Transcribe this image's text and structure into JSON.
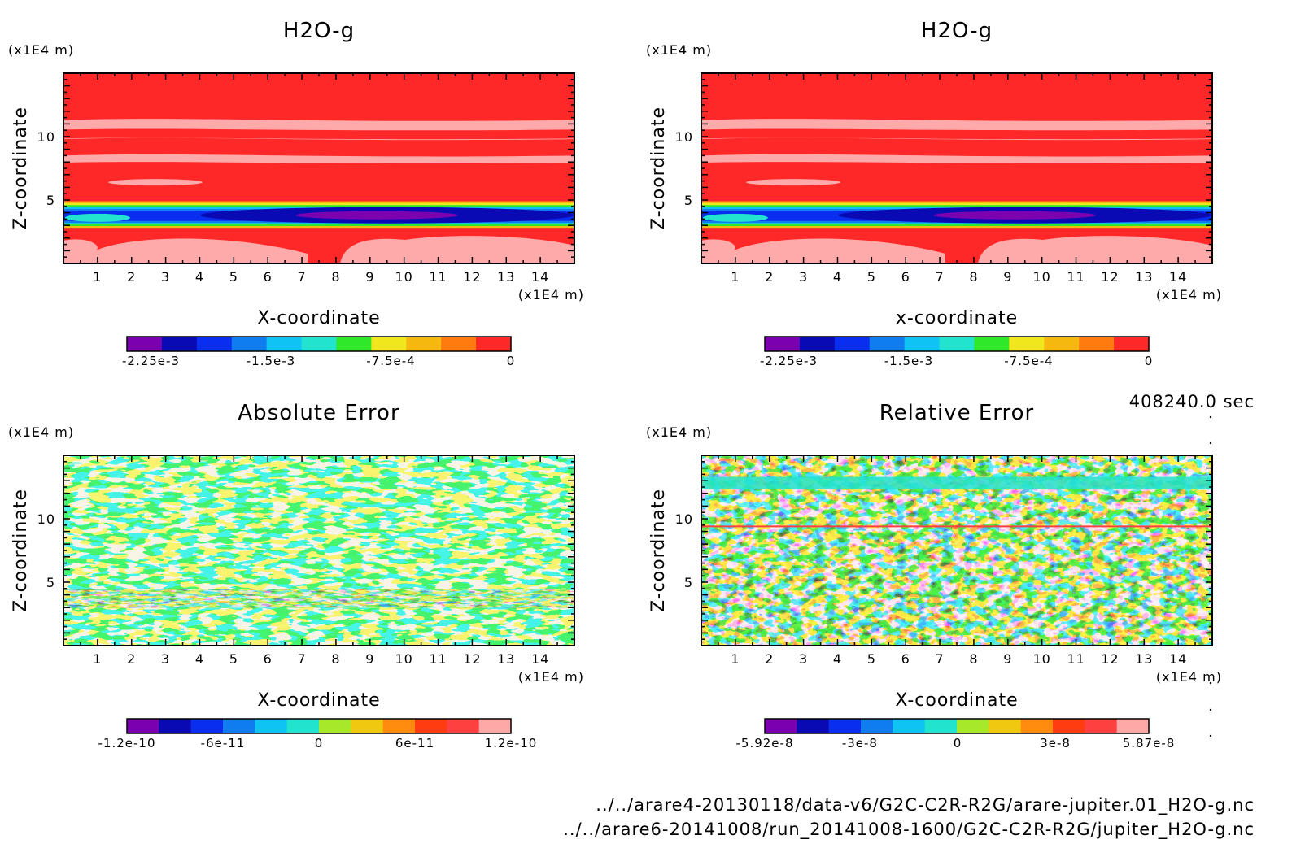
{
  "colors": {
    "field_scale": [
      "#7b00b0",
      "#0a0ab4",
      "#0a2ef0",
      "#0f7cf0",
      "#0fc4f5",
      "#22e3cd",
      "#30e82a",
      "#f0e81c",
      "#f5b80f",
      "#ff7a0f",
      "#ff3c1a",
      "#ff2828"
    ],
    "error_scale": [
      "#7b00b0",
      "#0a0ab4",
      "#0a2ef0",
      "#0f7cf0",
      "#0fc4f5",
      "#22e3cd",
      "#a8e82a",
      "#f0c80f",
      "#ff8c0f",
      "#ff3c0f",
      "#ff4040",
      "#ffa8a8"
    ],
    "light_band": "#ffaaaa"
  },
  "chart_data": [
    {
      "type": "heatmap",
      "id": "h2o-left",
      "title": "H2O-g",
      "xlabel": "X-coordinate",
      "ylabel": "Z-coordinate",
      "xunit": "(x1E4 m)",
      "yunit": "(x1E4 m)",
      "xlim": [
        0,
        15
      ],
      "ylim": [
        0,
        15
      ],
      "xticks": [
        "1",
        "2",
        "3",
        "4",
        "5",
        "6",
        "7",
        "8",
        "9",
        "10",
        "11",
        "12",
        "13",
        "14"
      ],
      "yticks": [
        "5",
        "10"
      ],
      "colorbar": {
        "min": -0.0024,
        "max": 0,
        "labels": [
          "-2.25e-3",
          "-1.5e-3",
          "-7.5e-4",
          "0"
        ],
        "label_values": [
          -0.00225,
          -0.0015,
          -0.00075,
          0
        ]
      }
    },
    {
      "type": "heatmap",
      "id": "h2o-right",
      "title": "H2O-g",
      "xlabel": "x-coordinate",
      "ylabel": "Z-coordinate",
      "xunit": "(x1E4 m)",
      "yunit": "(x1E4 m)",
      "xlim": [
        0,
        15
      ],
      "ylim": [
        0,
        15
      ],
      "xticks": [
        "1",
        "2",
        "3",
        "4",
        "5",
        "6",
        "7",
        "8",
        "9",
        "10",
        "11",
        "12",
        "13",
        "14"
      ],
      "yticks": [
        "5",
        "10"
      ],
      "colorbar": {
        "min": -0.0024,
        "max": 0,
        "labels": [
          "-2.25e-3",
          "-1.5e-3",
          "-7.5e-4",
          "0"
        ],
        "label_values": [
          -0.00225,
          -0.0015,
          -0.00075,
          0
        ]
      }
    },
    {
      "type": "heatmap",
      "id": "abs-error",
      "title": "Absolute Error",
      "xlabel": "X-coordinate",
      "ylabel": "Z-coordinate",
      "xunit": "(x1E4 m)",
      "yunit": "(x1E4 m)",
      "xlim": [
        0,
        15
      ],
      "ylim": [
        0,
        15
      ],
      "xticks": [
        "1",
        "2",
        "3",
        "4",
        "5",
        "6",
        "7",
        "8",
        "9",
        "10",
        "11",
        "12",
        "13",
        "14"
      ],
      "yticks": [
        "5",
        "10"
      ],
      "colorbar": {
        "min": -1.2e-10,
        "max": 1.2e-10,
        "labels": [
          "-1.2e-10",
          "-6e-11",
          "0",
          "6e-11",
          "1.2e-10"
        ],
        "label_values": [
          -1.2e-10,
          -6e-11,
          0,
          6e-11,
          1.2e-10
        ]
      }
    },
    {
      "type": "heatmap",
      "id": "rel-error",
      "title": "Relative Error",
      "xlabel": "X-coordinate",
      "ylabel": "Z-coordinate",
      "xunit": "(x1E4 m)",
      "yunit": "(x1E4 m)",
      "xlim": [
        0,
        15
      ],
      "ylim": [
        0,
        15
      ],
      "xticks": [
        "1",
        "2",
        "3",
        "4",
        "5",
        "6",
        "7",
        "8",
        "9",
        "10",
        "11",
        "12",
        "13",
        "14"
      ],
      "yticks": [
        "5",
        "10"
      ],
      "colorbar": {
        "min": -5.92e-08,
        "max": 5.87e-08,
        "labels": [
          "-5.92e-8",
          "-3e-8",
          "0",
          "3e-8",
          "5.87e-8"
        ],
        "label_values": [
          -5.92e-08,
          -3e-08,
          0,
          3e-08,
          5.87e-08
        ]
      }
    }
  ],
  "footer": {
    "time": "408240.0 sec",
    "file1": "../../arare4-20130118/data-v6/G2C-C2R-R2G/arare-jupiter.01_H2O-g.nc",
    "file2": "../../arare6-20141008/run_20141008-1600/G2C-C2R-R2G/jupiter_H2O-g.nc"
  }
}
